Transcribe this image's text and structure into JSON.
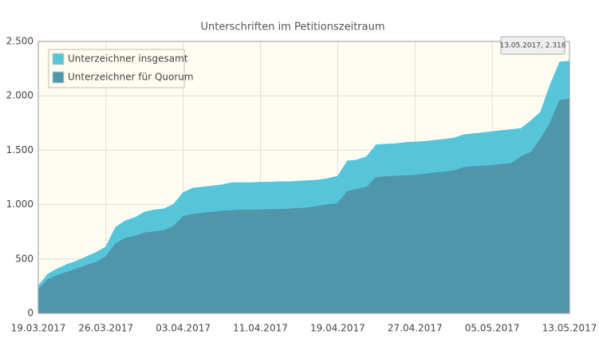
{
  "chart_data": {
    "type": "area",
    "title": "Unterschriften im Petitionszeitraum",
    "tooltip": "13.05.2017, 2.318",
    "x": [
      "19.03.2017",
      "20.03.2017",
      "21.03.2017",
      "22.03.2017",
      "23.03.2017",
      "24.03.2017",
      "25.03.2017",
      "26.03.2017",
      "27.03.2017",
      "28.03.2017",
      "29.03.2017",
      "30.03.2017",
      "31.03.2017",
      "01.04.2017",
      "02.04.2017",
      "03.04.2017",
      "04.04.2017",
      "05.04.2017",
      "06.04.2017",
      "07.04.2017",
      "08.04.2017",
      "09.04.2017",
      "10.04.2017",
      "11.04.2017",
      "12.04.2017",
      "13.04.2017",
      "14.04.2017",
      "15.04.2017",
      "16.04.2017",
      "17.04.2017",
      "18.04.2017",
      "19.04.2017",
      "20.04.2017",
      "21.04.2017",
      "22.04.2017",
      "23.04.2017",
      "24.04.2017",
      "25.04.2017",
      "26.04.2017",
      "27.04.2017",
      "28.04.2017",
      "29.04.2017",
      "30.04.2017",
      "01.05.2017",
      "02.05.2017",
      "03.05.2017",
      "04.05.2017",
      "05.05.2017",
      "06.05.2017",
      "07.05.2017",
      "08.05.2017",
      "09.05.2017",
      "10.05.2017",
      "11.05.2017",
      "12.05.2017",
      "13.05.2017"
    ],
    "series": [
      {
        "name": "Unterzeichner insgesamt",
        "color": "#56c5da",
        "values": [
          250,
          360,
          410,
          450,
          480,
          520,
          560,
          610,
          790,
          850,
          880,
          930,
          950,
          960,
          1000,
          1110,
          1150,
          1160,
          1170,
          1180,
          1200,
          1200,
          1200,
          1205,
          1205,
          1210,
          1210,
          1215,
          1220,
          1225,
          1240,
          1260,
          1400,
          1410,
          1440,
          1550,
          1555,
          1560,
          1570,
          1575,
          1580,
          1590,
          1600,
          1610,
          1640,
          1650,
          1660,
          1670,
          1680,
          1690,
          1700,
          1770,
          1850,
          2100,
          2310,
          2318
        ]
      },
      {
        "name": "Unterzeichner für Quorum",
        "color": "#4f96aa",
        "values": [
          220,
          310,
          350,
          380,
          410,
          440,
          470,
          520,
          640,
          690,
          710,
          740,
          750,
          760,
          800,
          890,
          910,
          920,
          930,
          940,
          945,
          950,
          950,
          950,
          955,
          955,
          960,
          965,
          970,
          985,
          1000,
          1010,
          1120,
          1140,
          1160,
          1250,
          1255,
          1260,
          1265,
          1270,
          1280,
          1290,
          1300,
          1310,
          1340,
          1350,
          1355,
          1360,
          1370,
          1380,
          1440,
          1480,
          1600,
          1750,
          1960,
          1970
        ]
      }
    ],
    "xlim": [
      "19.03.2017",
      "13.05.2017"
    ],
    "xticks": [
      "19.03.2017",
      "26.03.2017",
      "03.04.2017",
      "11.04.2017",
      "19.04.2017",
      "27.04.2017",
      "05.05.2017",
      "13.05.2017"
    ],
    "ylim": [
      0,
      2500
    ],
    "yticks": [
      0,
      500,
      {
        "value": 1000,
        "label": "1.000"
      },
      {
        "value": 1500,
        "label": "1.500"
      },
      {
        "value": 2000,
        "label": "2.000"
      },
      {
        "value": 2500,
        "label": "2.500"
      }
    ],
    "grid": true,
    "legend": "top-left"
  }
}
